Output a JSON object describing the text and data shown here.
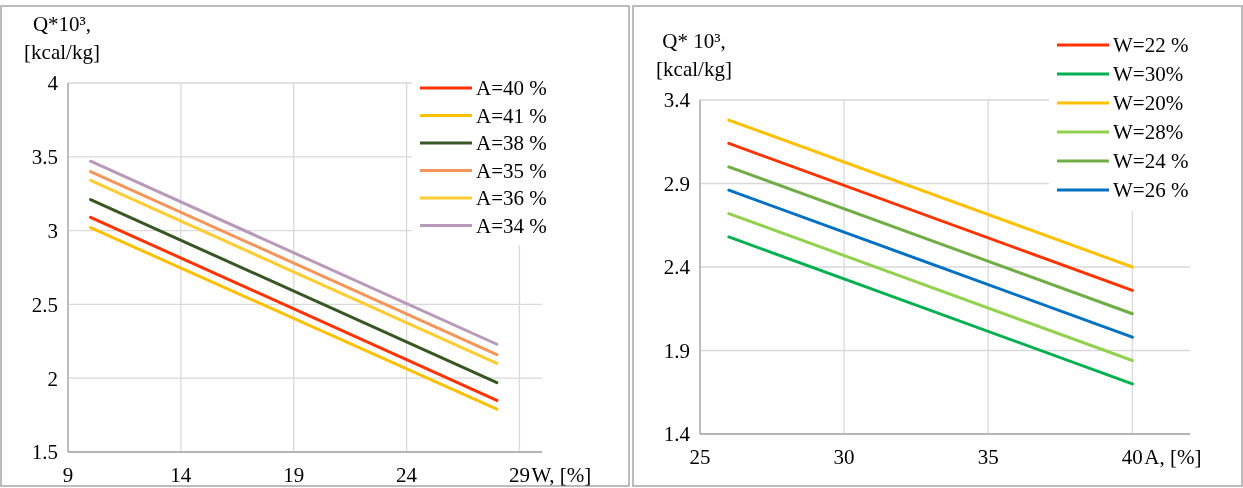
{
  "chart_data": [
    {
      "type": "line",
      "xlabel": "W, [%]",
      "ylabel": "Q*10³, [kcal/kg]",
      "xlim": [
        9,
        30
      ],
      "xticks": [
        9,
        14,
        19,
        24,
        29
      ],
      "ylim": [
        1.5,
        4
      ],
      "yticks": [
        1.5,
        2,
        2.5,
        3,
        3.5,
        4
      ],
      "grid": true,
      "legend": "top right",
      "x": [
        10,
        28
      ],
      "series": [
        {
          "name": "A=40 %",
          "color": "#ff3300",
          "values": [
            3.09,
            1.85
          ]
        },
        {
          "name": "A=41 %",
          "color": "#ffc000",
          "values": [
            3.02,
            1.79
          ]
        },
        {
          "name": "A=38 %",
          "color": "#375623",
          "values": [
            3.21,
            1.97
          ]
        },
        {
          "name": "A=35 %",
          "color": "#f4965a",
          "values": [
            3.4,
            2.16
          ]
        },
        {
          "name": "A=36 %",
          "color": "#ffcc33",
          "values": [
            3.34,
            2.1
          ]
        },
        {
          "name": "A=34 %",
          "color": "#b89ab8",
          "values": [
            3.47,
            2.23
          ]
        }
      ]
    },
    {
      "type": "line",
      "xlabel": "A, [%]",
      "ylabel": "Q* 10³, [kcal/kg]",
      "xlim": [
        25,
        42
      ],
      "xticks": [
        25,
        30,
        35,
        40
      ],
      "ylim": [
        1.4,
        3.4
      ],
      "yticks": [
        1.4,
        1.9,
        2.4,
        2.9,
        3.4
      ],
      "grid": true,
      "legend": "top right",
      "x": [
        26,
        40
      ],
      "series": [
        {
          "name": "W=22 %",
          "color": "#ff3300",
          "values": [
            3.14,
            2.26
          ]
        },
        {
          "name": "W=30%",
          "color": "#00b050",
          "values": [
            2.58,
            1.7
          ]
        },
        {
          "name": "W=20%",
          "color": "#ffc000",
          "values": [
            3.28,
            2.4
          ]
        },
        {
          "name": "W=28%",
          "color": "#92d050",
          "values": [
            2.72,
            1.84
          ]
        },
        {
          "name": "W=24 %",
          "color": "#70ad47",
          "values": [
            3.0,
            2.12
          ]
        },
        {
          "name": "W=26 %",
          "color": "#0070c0",
          "values": [
            2.86,
            1.98
          ]
        }
      ]
    }
  ]
}
